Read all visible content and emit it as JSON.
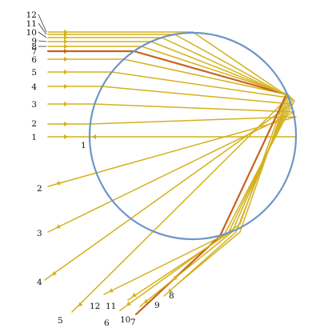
{
  "figure": {
    "colors": {
      "drop": "#6e95c8",
      "ray": "#d4b11c",
      "highlight_ray": "#c9621e",
      "label": "#111111"
    },
    "highlighted_ray": "7",
    "rays": [
      {
        "id": "1",
        "in_label": "1",
        "exit_label": "1"
      },
      {
        "id": "2",
        "in_label": "2",
        "exit_label": "2"
      },
      {
        "id": "3",
        "in_label": "3",
        "exit_label": "3"
      },
      {
        "id": "4",
        "in_label": "4",
        "exit_label": "4"
      },
      {
        "id": "5",
        "in_label": "5",
        "exit_label": "5"
      },
      {
        "id": "6",
        "in_label": "6",
        "exit_label": "6"
      },
      {
        "id": "7",
        "in_label": "7",
        "exit_label": "7"
      },
      {
        "id": "8",
        "in_label": "8",
        "exit_label": "8"
      },
      {
        "id": "9",
        "in_label": "9",
        "exit_label": "9"
      },
      {
        "id": "10",
        "in_label": "10",
        "exit_label": "10"
      },
      {
        "id": "11",
        "in_label": "11",
        "exit_label": "11"
      },
      {
        "id": "12",
        "in_label": "12",
        "exit_label": "12"
      }
    ]
  }
}
